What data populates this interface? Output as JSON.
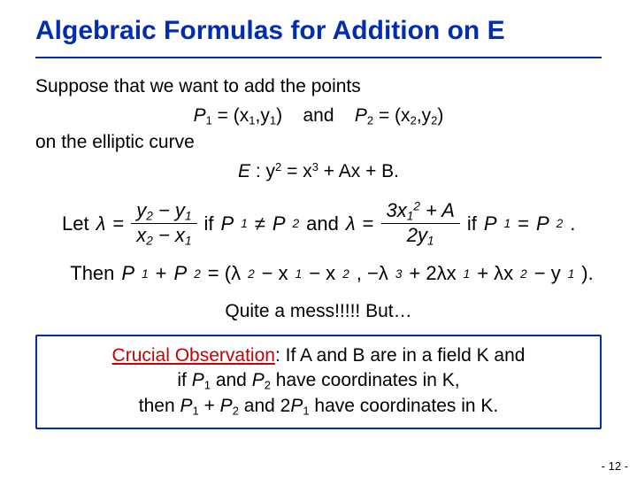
{
  "colors": {
    "title_color": "#002db3",
    "underline_color": "#002db3",
    "box_border_color": "#002db3",
    "crucial_color": "#cc0000",
    "text_color": "#000000"
  },
  "title": "Algebraic Formulas for Addition on E",
  "intro": {
    "line1": "Suppose that we want to add the points",
    "p1_label": "P",
    "p1_sub": "1",
    "eq": " = (x",
    "comma": ",",
    "and": "and",
    "p2_label": "P",
    "p2_sub": "2",
    "line2_end": ")",
    "line3": "on the elliptic curve",
    "curve_E": "E",
    "curve_rest": " : y",
    "curve_eq": " = x",
    "curve_tail": " + Ax + B."
  },
  "lambda": {
    "let": "Let ",
    "lam": "λ",
    "eq": " = ",
    "num1a": "y",
    "num1b": " − y",
    "den1a": "x",
    "den1b": " − x",
    "if": "  if  ",
    "neq": " ≠ ",
    "and": "  and  ",
    "num2a": "3x",
    "num2b": " + A",
    "den2": "2y",
    "eq2": " = ",
    "period": "."
  },
  "then": {
    "then": "Then  ",
    "p1p2": " + ",
    "eq": " = (λ",
    "mid1": " − x",
    "mid2": " − x",
    "comma": ", −λ",
    "mid3": " + 2λx",
    "mid4": " + λx",
    "mid5": " − y",
    "end": ")."
  },
  "quite": "Quite a mess!!!!! But…",
  "box": {
    "crucial": "Crucial Observation",
    "rest1": ": If A and B are in a field K and",
    "line2a": "if ",
    "line2b": " and ",
    "line2c": " have coordinates in K,",
    "line3a": "then ",
    "plus": " + ",
    "line3b": " and 2",
    "line3c": " have coordinates in K."
  },
  "pagenum": "- 12 -"
}
